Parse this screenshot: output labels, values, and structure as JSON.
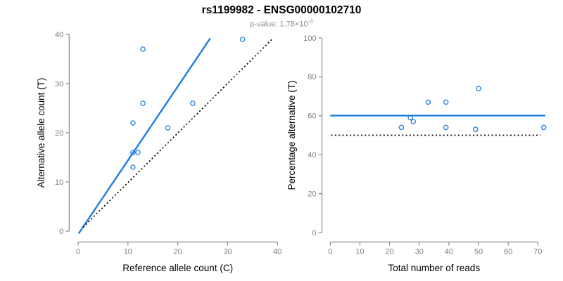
{
  "header": {
    "title": "rs1199982 - ENSG00000102710",
    "subtitle_prefix": "p-value: 1.78×10",
    "subtitle_exponent": "-4"
  },
  "colors": {
    "accent_blue": "#1e7de1",
    "dotted_black": "#000000",
    "axis_gray": "#8a8a8a",
    "tick_label_gray": "#7d7d7d",
    "axis_title_black": "#000000"
  },
  "chart_data": [
    {
      "type": "scatter",
      "panel": "allele-counts",
      "xlabel": "Reference allele count (C)",
      "ylabel": "Alternative allele count (T)",
      "xlim": [
        0,
        40
      ],
      "ylim": [
        0,
        40
      ],
      "xticks": [
        0,
        10,
        20,
        30,
        40
      ],
      "yticks": [
        0,
        10,
        20,
        30,
        40
      ],
      "grid": false,
      "points": [
        [
          11,
          13
        ],
        [
          11,
          16
        ],
        [
          12,
          16
        ],
        [
          11,
          22
        ],
        [
          18,
          21
        ],
        [
          13,
          26
        ],
        [
          23,
          26
        ],
        [
          13,
          37
        ],
        [
          33,
          39
        ]
      ],
      "lines": [
        {
          "name": "fit-line",
          "style": "solid",
          "color": "#1e7de1",
          "x": [
            0.1,
            26.5
          ],
          "y": [
            -0.5,
            39.2
          ]
        },
        {
          "name": "identity-line",
          "style": "dotted",
          "color": "#000000",
          "x": [
            1.0,
            38.9
          ],
          "y": [
            0.8,
            39.0
          ]
        }
      ]
    },
    {
      "type": "scatter",
      "panel": "percentage-vs-reads",
      "xlabel": "Total number of reads",
      "ylabel": "Percentage alternative (T)",
      "xlim": [
        0,
        72.5
      ],
      "ylim": [
        0,
        100
      ],
      "xticks": [
        0,
        10,
        20,
        30,
        40,
        50,
        60,
        70
      ],
      "yticks": [
        0,
        20,
        40,
        60,
        80,
        100
      ],
      "grid": false,
      "points": [
        [
          24,
          54
        ],
        [
          27,
          59
        ],
        [
          28,
          57
        ],
        [
          33,
          67
        ],
        [
          39,
          54
        ],
        [
          39,
          67
        ],
        [
          49,
          53
        ],
        [
          50,
          74
        ],
        [
          72,
          54
        ]
      ],
      "lines": [
        {
          "name": "mean-percentage-line",
          "style": "solid",
          "color": "#1e7de1",
          "x": [
            0.0,
            72.5
          ],
          "y": [
            60.1,
            60.1
          ]
        },
        {
          "name": "expected-50-line",
          "style": "dotted",
          "color": "#000000",
          "x": [
            0.3,
            70.9
          ],
          "y": [
            50,
            50
          ]
        }
      ]
    }
  ]
}
